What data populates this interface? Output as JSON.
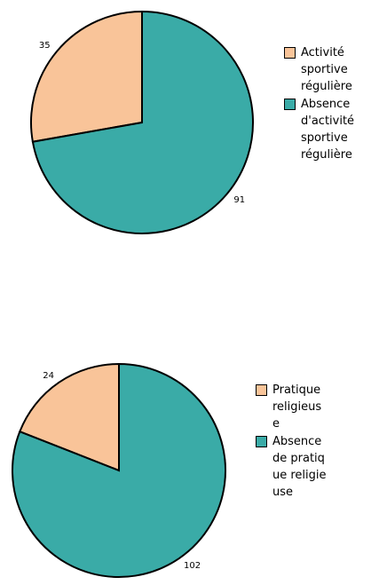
{
  "chart_data": [
    {
      "type": "pie",
      "categories": [
        "Activité sportive régulière",
        "Absence d'activité sportive régulière"
      ],
      "values": [
        35,
        91
      ],
      "colors": [
        "#f9c499",
        "#3aaba7"
      ]
    },
    {
      "type": "pie",
      "categories": [
        "Pratique religieuse",
        "Absence de pratique religieuse"
      ],
      "values": [
        24,
        102
      ],
      "colors": [
        "#f9c499",
        "#3aaba7"
      ]
    }
  ]
}
